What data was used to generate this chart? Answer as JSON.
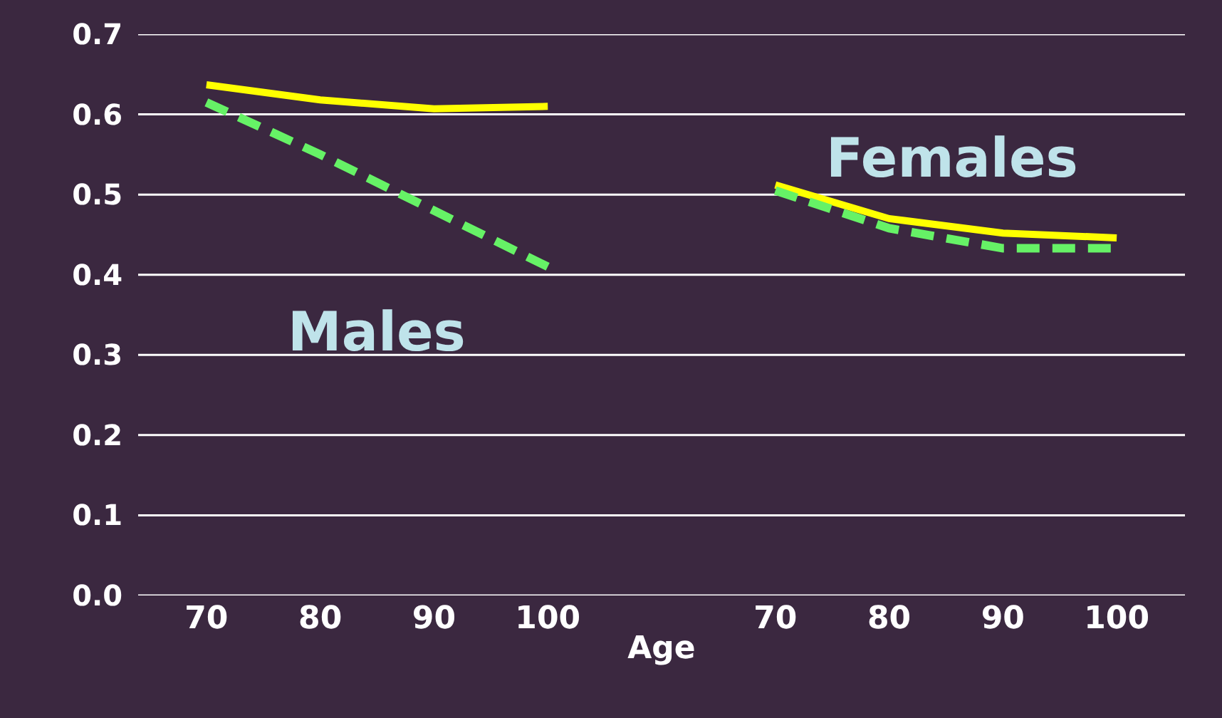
{
  "chart_data": {
    "type": "line",
    "xlabel": "Age",
    "categories": [
      "70",
      "80",
      "90",
      "100",
      null,
      "70",
      "80",
      "90",
      "100"
    ],
    "series": [
      {
        "color": "#ffff00",
        "line_style": "solid",
        "values": [
          0.637,
          0.618,
          0.607,
          0.61,
          null,
          0.512,
          0.47,
          0.452,
          0.446
        ]
      },
      {
        "color": "#66f266",
        "line_style": "dashed",
        "values": [
          0.615,
          0.55,
          0.48,
          0.41,
          null,
          0.505,
          0.458,
          0.433,
          0.433
        ]
      }
    ],
    "annotations": [
      "Males",
      "Females"
    ],
    "ylim": [
      0,
      0.7
    ],
    "yticks": [
      {
        "value": 0,
        "label": "0.0"
      },
      {
        "value": 0.1,
        "label": "0.1"
      },
      {
        "value": 0.2,
        "label": "0.2"
      },
      {
        "value": 0.3,
        "label": "0.3"
      },
      {
        "value": 0.4,
        "label": "0.4"
      },
      {
        "value": 0.5,
        "label": "0.5"
      },
      {
        "value": 0.6,
        "label": "0.6"
      },
      {
        "value": 0.7,
        "label": "0.7"
      }
    ],
    "grid": "y",
    "marker": "none"
  }
}
